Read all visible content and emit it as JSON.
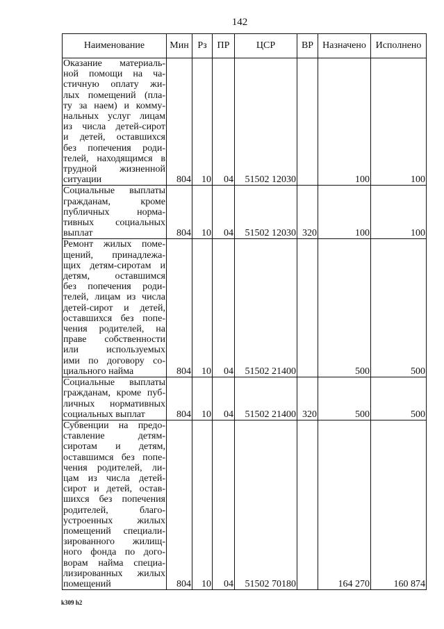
{
  "page_number": "142",
  "table": {
    "headers": [
      "Наименование",
      "Мин",
      "Рз",
      "ПР",
      "ЦСР",
      "ВР",
      "Назначено",
      "Исполнено"
    ],
    "rows": [
      {
        "name_lines": [
          "Оказание материаль-",
          "ной помощи на ча-",
          "стичную оплату жи-",
          "лых помещений (пла-",
          "ту за наем) и комму-",
          "нальных услуг лицам",
          "из числа детей-сирот",
          "и детей, оставшихся",
          "без попечения роди-",
          "телей, находящимся в",
          "трудной жизненной",
          "ситуации"
        ],
        "min": "804",
        "rz": "10",
        "pr": "04",
        "csr": "51502 12030",
        "vr": "",
        "assigned": "100",
        "executed": "100"
      },
      {
        "name_lines": [
          "Социальные выплаты",
          "гражданам, кроме",
          "публичных норма-",
          "тивных социальных",
          "выплат"
        ],
        "min": "804",
        "rz": "10",
        "pr": "04",
        "csr": "51502 12030",
        "vr": "320",
        "assigned": "100",
        "executed": "100"
      },
      {
        "name_lines": [
          "Ремонт жилых поме-",
          "щений, принадлежа-",
          "щих детям-сиротам и",
          "детям, оставшимся",
          "без попечения роди-",
          "телей, лицам из числа",
          "детей-сирот и детей,",
          "оставшихся без попе-",
          "чения родителей, на",
          "праве собственности",
          "или используемых",
          "ими по договору со-",
          "циального найма"
        ],
        "min": "804",
        "rz": "10",
        "pr": "04",
        "csr": "51502 21400",
        "vr": "",
        "assigned": "500",
        "executed": "500"
      },
      {
        "name_lines": [
          "Социальные выплаты",
          "гражданам, кроме пуб-",
          "личных нормативных",
          "социальных выплат"
        ],
        "min": "804",
        "rz": "10",
        "pr": "04",
        "csr": "51502 21400",
        "vr": "320",
        "assigned": "500",
        "executed": "500"
      },
      {
        "name_lines": [
          "Субвенции на предо-",
          "ставление детям-",
          "сиротам и детям,",
          "оставшимся без попе-",
          "чения родителей, ли-",
          "цам из числа детей-",
          "сирот и детей, остав-",
          "шихся без попечения",
          "родителей, благо-",
          "устроенных жилых",
          "помещений специали-",
          "зированного жилищ-",
          "ного фонда по дого-",
          "ворам найма специа-",
          "лизированных жилых",
          "помещений"
        ],
        "min": "804",
        "rz": "10",
        "pr": "04",
        "csr": "51502 70180",
        "vr": "",
        "assigned": "164 270",
        "executed": "160 874"
      }
    ]
  },
  "footer_code": "k309 h2"
}
